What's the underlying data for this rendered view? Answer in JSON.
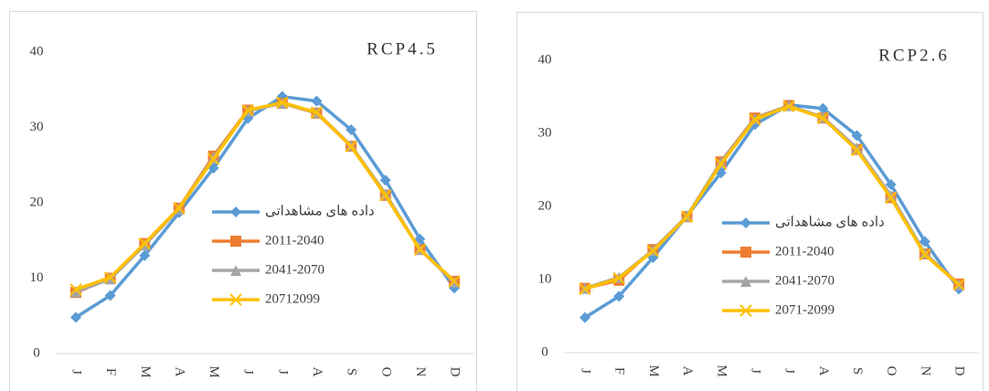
{
  "chart_data": [
    {
      "type": "line",
      "title": "RCP4.5",
      "categories": [
        "J",
        "F",
        "M",
        "A",
        "M",
        "J",
        "J",
        "A",
        "S",
        "O",
        "N",
        "D"
      ],
      "ylim": [
        0,
        40
      ],
      "yticks": [
        0,
        10,
        20,
        30,
        40
      ],
      "series": [
        {
          "name": "داده های مشاهداتی",
          "color": "#5b9bd5",
          "marker": "diamond",
          "values": [
            4.8,
            7.7,
            13,
            18.7,
            24.6,
            31.2,
            34.1,
            33.5,
            29.7,
            23,
            15.2,
            8.7
          ]
        },
        {
          "name": "2011-2040",
          "color": "#ed7d31",
          "marker": "square",
          "values": [
            8.1,
            10,
            14.6,
            19.3,
            26.2,
            32.3,
            33.2,
            31.9,
            27.5,
            21,
            13.8,
            9.6
          ]
        },
        {
          "name": "2041-2070",
          "color": "#a5a5a5",
          "marker": "triangle",
          "values": [
            8.2,
            9.9,
            14.4,
            19.2,
            26,
            32.2,
            33.2,
            32,
            27.6,
            21.2,
            13.8,
            9.5
          ]
        },
        {
          "name": "20712099",
          "color": "#ffc000",
          "marker": "x",
          "values": [
            8.5,
            10.1,
            14.6,
            19.3,
            25.8,
            32.3,
            33.3,
            32,
            27.5,
            21,
            13.8,
            9.6
          ]
        }
      ]
    },
    {
      "type": "line",
      "title": "RCP2.6",
      "categories": [
        "J",
        "F",
        "M",
        "A",
        "M",
        "J",
        "J",
        "A",
        "S",
        "O",
        "N",
        "D"
      ],
      "ylim": [
        0,
        40
      ],
      "yticks": [
        0,
        10,
        20,
        30,
        40
      ],
      "series": [
        {
          "name": "داده های مشاهداتی",
          "color": "#5b9bd5",
          "marker": "diamond",
          "values": [
            4.8,
            7.7,
            13,
            18.7,
            24.6,
            31.2,
            33.9,
            33.4,
            29.7,
            23,
            15.2,
            8.7
          ]
        },
        {
          "name": "2011-2040",
          "color": "#ed7d31",
          "marker": "square",
          "values": [
            8.8,
            9.9,
            14.1,
            18.6,
            26.1,
            32.1,
            33.8,
            32.1,
            27.8,
            21.2,
            13.5,
            9.4
          ]
        },
        {
          "name": "2041-2070",
          "color": "#a5a5a5",
          "marker": "triangle",
          "values": [
            8.8,
            10.3,
            14,
            18.7,
            26,
            32,
            33.8,
            32.2,
            28,
            21.5,
            13.6,
            9.3
          ]
        },
        {
          "name": "2071-2099",
          "color": "#ffc000",
          "marker": "x",
          "values": [
            8.7,
            10.2,
            13.9,
            18.6,
            25.8,
            31.9,
            33.7,
            32.1,
            27.7,
            21.2,
            13.4,
            9.3
          ]
        }
      ]
    }
  ]
}
